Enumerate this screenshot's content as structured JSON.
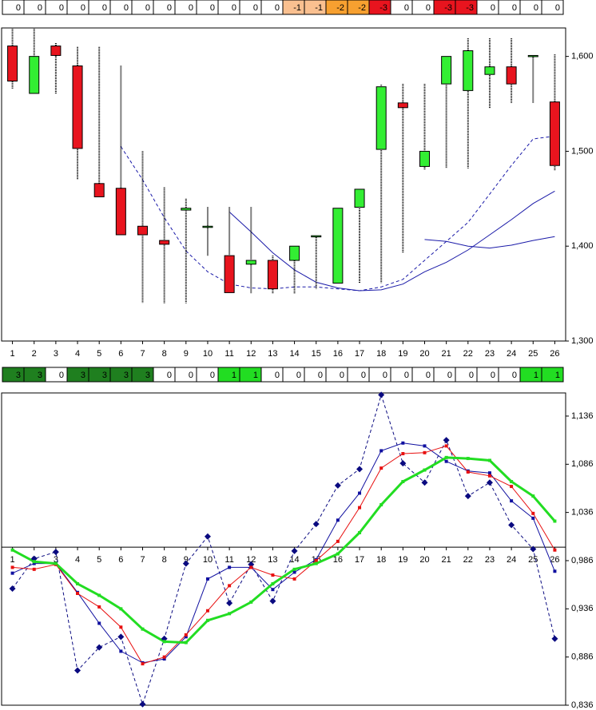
{
  "chart_data": [
    {
      "type": "strip",
      "values": [
        0,
        0,
        0,
        0,
        0,
        0,
        0,
        0,
        0,
        0,
        0,
        0,
        0,
        -1,
        -1,
        -2,
        -2,
        -3,
        0,
        0,
        -3,
        -3,
        0,
        0,
        0,
        0
      ],
      "colors": [
        "#ffffff",
        "#ffffff",
        "#ffffff",
        "#ffffff",
        "#ffffff",
        "#ffffff",
        "#ffffff",
        "#ffffff",
        "#ffffff",
        "#ffffff",
        "#ffffff",
        "#ffffff",
        "#ffffff",
        "#fac090",
        "#fac090",
        "#f7a030",
        "#f7a030",
        "#e8141e",
        "#ffffff",
        "#ffffff",
        "#e8141e",
        "#e8141e",
        "#ffffff",
        "#ffffff",
        "#ffffff",
        "#ffffff"
      ]
    },
    {
      "type": "candlestick",
      "categories": [
        "1",
        "2",
        "3",
        "4",
        "5",
        "6",
        "7",
        "8",
        "9",
        "10",
        "11",
        "12",
        "13",
        "14",
        "15",
        "16",
        "17",
        "18",
        "19",
        "20",
        "21",
        "22",
        "23",
        "24",
        "25",
        "26"
      ],
      "open": [
        1611,
        1561,
        1611,
        1590,
        1466,
        1461,
        1421,
        1406,
        1438,
        1421,
        1390,
        1381,
        1385,
        1385,
        1411,
        1361,
        1441,
        1502,
        1551,
        1484,
        1571,
        1564,
        1581,
        1589,
        1601,
        1552
      ],
      "high": [
        1629,
        1629,
        1614,
        1610,
        1610,
        1590,
        1500,
        1462,
        1450,
        1441,
        1441,
        1441,
        1390,
        1400,
        1411,
        1440,
        1460,
        1570,
        1571,
        1571,
        1600,
        1619,
        1619,
        1619,
        1601,
        1602
      ],
      "low": [
        1566,
        1561,
        1561,
        1470,
        1452,
        1412,
        1340,
        1340,
        1340,
        1390,
        1351,
        1350,
        1350,
        1350,
        1355,
        1361,
        1361,
        1361,
        1393,
        1480,
        1482,
        1482,
        1545,
        1551,
        1551,
        1480
      ],
      "close": [
        1574,
        1600,
        1601,
        1503,
        1452,
        1412,
        1412,
        1402,
        1440,
        1421,
        1351,
        1385,
        1355,
        1400,
        1411,
        1440,
        1460,
        1568,
        1546,
        1500,
        1600,
        1606,
        1589,
        1571,
        1601,
        1485
      ],
      "up_color": "#33ee33",
      "down_color": "#e8141e",
      "lines": [
        {
          "color": "#1a1aa8",
          "dashed": true,
          "values": [
            null,
            null,
            null,
            null,
            null,
            1505,
            1470,
            1430,
            1395,
            1373,
            1360,
            1356,
            1355,
            1357,
            1357,
            1355,
            1353,
            1357,
            1365,
            1385,
            1405,
            1425,
            1455,
            1485,
            1513,
            1516
          ]
        },
        {
          "color": "#1a1aa8",
          "dashed": false,
          "values": [
            null,
            null,
            null,
            null,
            null,
            null,
            null,
            null,
            null,
            null,
            1436,
            1415,
            1393,
            1375,
            1362,
            1356,
            1353,
            1354,
            1360,
            1373,
            1383,
            1396,
            1412,
            1428,
            1445,
            1458
          ]
        },
        {
          "color": "#1a1aa8",
          "dashed": false,
          "values": [
            null,
            null,
            null,
            null,
            null,
            null,
            null,
            null,
            null,
            null,
            null,
            null,
            null,
            null,
            null,
            null,
            null,
            null,
            null,
            1407,
            1405,
            1400,
            1398,
            1401,
            1406,
            1410
          ]
        }
      ],
      "ylim": [
        1300,
        1630
      ],
      "yticks": [
        {
          "value": 1300,
          "label": "1,300"
        },
        {
          "value": 1400,
          "label": "1,400"
        },
        {
          "value": 1500,
          "label": "1,500"
        },
        {
          "value": 1600,
          "label": "1,600"
        }
      ]
    },
    {
      "type": "strip",
      "values": [
        3,
        3,
        0,
        3,
        3,
        3,
        3,
        0,
        0,
        0,
        1,
        1,
        0,
        0,
        0,
        0,
        0,
        0,
        0,
        0,
        0,
        0,
        0,
        0,
        1,
        1
      ],
      "colors": [
        "#1f7f1f",
        "#1f7f1f",
        "#ffffff",
        "#1f7f1f",
        "#1f7f1f",
        "#1f7f1f",
        "#1f7f1f",
        "#ffffff",
        "#ffffff",
        "#ffffff",
        "#22dd22",
        "#22dd22",
        "#ffffff",
        "#ffffff",
        "#ffffff",
        "#ffffff",
        "#ffffff",
        "#ffffff",
        "#ffffff",
        "#ffffff",
        "#ffffff",
        "#ffffff",
        "#ffffff",
        "#ffffff",
        "#22dd22",
        "#22dd22"
      ]
    },
    {
      "type": "line",
      "categories": [
        "1",
        "2",
        "3",
        "4",
        "5",
        "6",
        "7",
        "8",
        "9",
        "10",
        "11",
        "12",
        "13",
        "14",
        "15",
        "16",
        "17",
        "18",
        "19",
        "20",
        "21",
        "22",
        "23",
        "24",
        "25",
        "26"
      ],
      "series": [
        {
          "color": "#0a0a80",
          "dashed": true,
          "marker": "diamond",
          "width": 1,
          "values": [
            0.957,
            0.988,
            0.995,
            0.872,
            0.896,
            0.907,
            0.837,
            0.905,
            0.983,
            1.011,
            0.942,
            0.982,
            0.944,
            0.996,
            1.024,
            1.064,
            1.081,
            1.158,
            1.087,
            1.067,
            1.111,
            1.053,
            1.067,
            1.023,
            0.998,
            0.905
          ]
        },
        {
          "color": "#1010a0",
          "dashed": false,
          "marker": "square",
          "width": 1,
          "values": [
            0.973,
            0.983,
            0.983,
            0.953,
            0.921,
            0.892,
            0.88,
            0.884,
            0.907,
            0.967,
            0.979,
            0.979,
            0.956,
            0.974,
            0.987,
            1.028,
            1.056,
            1.1,
            1.108,
            1.105,
            1.089,
            1.079,
            1.077,
            1.048,
            1.03,
            0.975
          ]
        },
        {
          "color": "#e81010",
          "dashed": false,
          "marker": "square",
          "width": 1,
          "values": [
            0.979,
            0.977,
            0.982,
            0.952,
            0.938,
            0.917,
            0.879,
            0.886,
            0.909,
            0.934,
            0.96,
            0.979,
            0.971,
            0.967,
            0.986,
            1.006,
            1.041,
            1.082,
            1.097,
            1.098,
            1.105,
            1.078,
            1.074,
            1.063,
            1.035,
            0.997
          ]
        },
        {
          "color": "#22dd22",
          "dashed": false,
          "marker": "square",
          "width": 3,
          "values": [
            0.997,
            0.985,
            0.983,
            0.962,
            0.95,
            0.936,
            0.915,
            0.902,
            0.901,
            0.924,
            0.931,
            0.943,
            0.962,
            0.977,
            0.983,
            0.993,
            1.015,
            1.044,
            1.068,
            1.08,
            1.093,
            1.092,
            1.09,
            1.068,
            1.053,
            1.027
          ]
        }
      ],
      "x_axis_at": 1,
      "ylim": [
        0.836,
        1.16
      ],
      "yticks": [
        {
          "value": 0.836,
          "label": "0,836"
        },
        {
          "value": 0.886,
          "label": "0,886"
        },
        {
          "value": 0.936,
          "label": "0,936"
        },
        {
          "value": 0.986,
          "label": "0,986"
        },
        {
          "value": 1.036,
          "label": "1,036"
        },
        {
          "value": 1.086,
          "label": "1,086"
        },
        {
          "value": 1.136,
          "label": "1,136"
        }
      ]
    }
  ]
}
